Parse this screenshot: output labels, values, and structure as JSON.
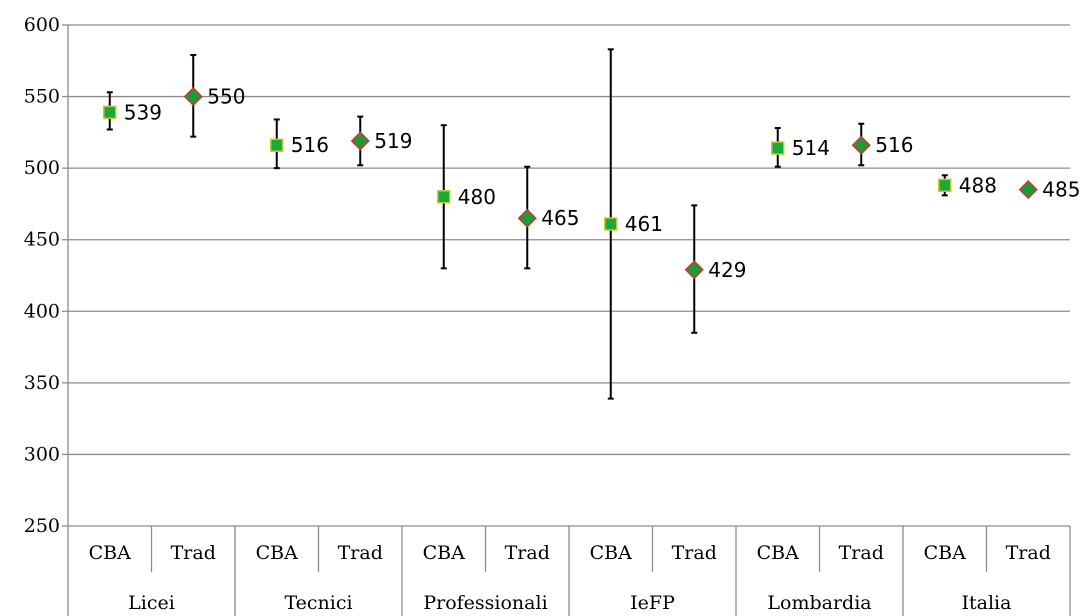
{
  "chart_data": {
    "type": "scatter",
    "title": "",
    "xlabel": "",
    "ylabel": "",
    "ylim": [
      250,
      600
    ],
    "yticks": [
      250,
      300,
      350,
      400,
      450,
      500,
      550,
      600
    ],
    "grid": true,
    "legend": "none",
    "groups": [
      "Licei",
      "Tecnici",
      "Professionali",
      "IeFP",
      "Lombardia",
      "Italia"
    ],
    "categories": [
      {
        "group": "Licei",
        "label": "CBA"
      },
      {
        "group": "Licei",
        "label": "Trad"
      },
      {
        "group": "Tecnici",
        "label": "CBA"
      },
      {
        "group": "Tecnici",
        "label": "Trad"
      },
      {
        "group": "Professionali",
        "label": "CBA"
      },
      {
        "group": "Professionali",
        "label": "Trad"
      },
      {
        "group": "IeFP",
        "label": "CBA"
      },
      {
        "group": "IeFP",
        "label": "Trad"
      },
      {
        "group": "Lombardia",
        "label": "CBA"
      },
      {
        "group": "Lombardia",
        "label": "Trad"
      },
      {
        "group": "Italia",
        "label": "CBA"
      },
      {
        "group": "Italia",
        "label": "Trad"
      }
    ],
    "points": [
      {
        "category": 0,
        "value": 539,
        "low": 527,
        "high": 553,
        "marker": "square",
        "label": "539"
      },
      {
        "category": 1,
        "value": 550,
        "low": 522,
        "high": 579,
        "marker": "diamond",
        "label": "550"
      },
      {
        "category": 2,
        "value": 516,
        "low": 500,
        "high": 534,
        "marker": "square",
        "label": "516"
      },
      {
        "category": 3,
        "value": 519,
        "low": 502,
        "high": 536,
        "marker": "diamond",
        "label": "519"
      },
      {
        "category": 4,
        "value": 480,
        "low": 430,
        "high": 530,
        "marker": "square",
        "label": "480"
      },
      {
        "category": 5,
        "value": 465,
        "low": 430,
        "high": 501,
        "marker": "diamond",
        "label": "465"
      },
      {
        "category": 6,
        "value": 461,
        "low": 339,
        "high": 583,
        "marker": "square",
        "label": "461"
      },
      {
        "category": 7,
        "value": 429,
        "low": 385,
        "high": 474,
        "marker": "diamond",
        "label": "429"
      },
      {
        "category": 8,
        "value": 514,
        "low": 501,
        "high": 528,
        "marker": "square",
        "label": "514"
      },
      {
        "category": 9,
        "value": 516,
        "low": 502,
        "high": 531,
        "marker": "diamond",
        "label": "516"
      },
      {
        "category": 10,
        "value": 488,
        "low": 481,
        "high": 495,
        "marker": "square",
        "label": "488"
      },
      {
        "category": 11,
        "value": 485,
        "low": 485,
        "high": 485,
        "marker": "diamond",
        "label": "485"
      }
    ],
    "colors": {
      "square_fill": "#1aaa3c",
      "square_stroke": "#c9c832",
      "diamond_fill": "#1e9a3a",
      "diamond_stroke": "#d2322d",
      "grid": "#8c8c8c",
      "axis": "#8c8c8c",
      "errorbar": "#000000"
    }
  }
}
